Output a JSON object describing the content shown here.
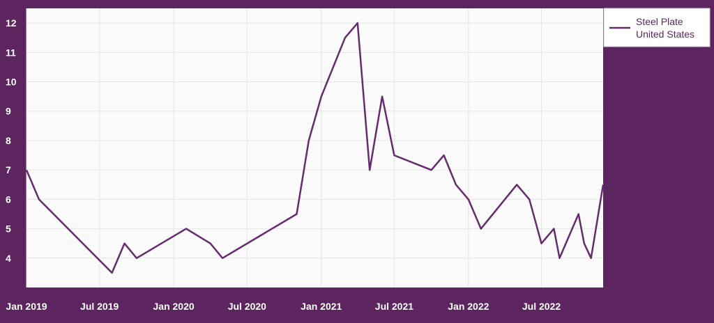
{
  "chart_data": {
    "type": "line",
    "title": "",
    "xlabel": "",
    "ylabel": "",
    "ylim": [
      3,
      12.5
    ],
    "xlim": [
      "2019-01-01",
      "2022-12-01"
    ],
    "grid": true,
    "legend_position": "top-right",
    "colors": {
      "background": "#5c2560",
      "plot_background": "#fafafa",
      "grid": "#e6e6e6",
      "line": "#652b6e",
      "tick_text": "#ffffff",
      "legend_text": "#5c2560"
    },
    "y_ticks": [
      {
        "value": 4,
        "label": "4"
      },
      {
        "value": 5,
        "label": "5"
      },
      {
        "value": 6,
        "label": "6"
      },
      {
        "value": 7,
        "label": "7"
      },
      {
        "value": 8,
        "label": "8"
      },
      {
        "value": 9,
        "label": "9"
      },
      {
        "value": 10,
        "label": "10"
      },
      {
        "value": 11,
        "label": "11"
      },
      {
        "value": 12,
        "label": "12"
      }
    ],
    "x_ticks": [
      {
        "value": "2019-01-01",
        "label": "Jan 2019"
      },
      {
        "value": "2019-07-01",
        "label": "Jul 2019"
      },
      {
        "value": "2020-01-01",
        "label": "Jan 2020"
      },
      {
        "value": "2020-07-01",
        "label": "Jul 2020"
      },
      {
        "value": "2021-01-01",
        "label": "Jan 2021"
      },
      {
        "value": "2021-07-01",
        "label": "Jul 2021"
      },
      {
        "value": "2022-01-01",
        "label": "Jan 2022"
      },
      {
        "value": "2022-07-01",
        "label": "Jul 2022"
      }
    ],
    "series": [
      {
        "legend_lines": [
          "Steel Plate",
          "United States"
        ],
        "points": [
          {
            "x": "2019-01-01",
            "y": 7
          },
          {
            "x": "2019-02-01",
            "y": 6
          },
          {
            "x": "2019-08-01",
            "y": 3.5
          },
          {
            "x": "2019-09-01",
            "y": 4.5
          },
          {
            "x": "2019-10-01",
            "y": 4
          },
          {
            "x": "2020-02-01",
            "y": 5
          },
          {
            "x": "2020-04-01",
            "y": 4.5
          },
          {
            "x": "2020-05-01",
            "y": 4
          },
          {
            "x": "2020-11-01",
            "y": 5.5
          },
          {
            "x": "2020-12-01",
            "y": 8
          },
          {
            "x": "2021-01-01",
            "y": 9.5
          },
          {
            "x": "2021-03-01",
            "y": 11.5
          },
          {
            "x": "2021-04-01",
            "y": 12
          },
          {
            "x": "2021-05-01",
            "y": 7
          },
          {
            "x": "2021-06-01",
            "y": 9.5
          },
          {
            "x": "2021-07-01",
            "y": 7.5
          },
          {
            "x": "2021-10-01",
            "y": 7
          },
          {
            "x": "2021-11-01",
            "y": 7.5
          },
          {
            "x": "2021-12-01",
            "y": 6.5
          },
          {
            "x": "2022-01-01",
            "y": 6
          },
          {
            "x": "2022-02-01",
            "y": 5
          },
          {
            "x": "2022-05-01",
            "y": 6.5
          },
          {
            "x": "2022-06-01",
            "y": 6
          },
          {
            "x": "2022-07-01",
            "y": 4.5
          },
          {
            "x": "2022-08-01",
            "y": 5
          },
          {
            "x": "2022-08-15",
            "y": 4
          },
          {
            "x": "2022-10-01",
            "y": 5.5
          },
          {
            "x": "2022-10-15",
            "y": 4.5
          },
          {
            "x": "2022-11-01",
            "y": 4
          },
          {
            "x": "2022-12-01",
            "y": 6.5
          }
        ]
      }
    ]
  }
}
